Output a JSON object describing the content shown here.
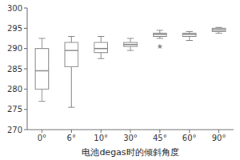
{
  "chart_data": {
    "type": "box",
    "xlabel": "电池degas时的倾斜角度",
    "categories": [
      "0°",
      "6°",
      "10°",
      "30°",
      "45°",
      "60°",
      "90°"
    ],
    "boxes": [
      {
        "whislo": 277.0,
        "q1": 280.0,
        "med": 284.5,
        "q3": 290.0,
        "whishi": 292.5,
        "fliers": []
      },
      {
        "whislo": 275.5,
        "q1": 285.5,
        "med": 289.5,
        "q3": 291.5,
        "whishi": 293.0,
        "fliers": []
      },
      {
        "whislo": 287.5,
        "q1": 289.0,
        "med": 290.0,
        "q3": 291.5,
        "whishi": 293.0,
        "fliers": []
      },
      {
        "whislo": 289.5,
        "q1": 290.5,
        "med": 291.0,
        "q3": 291.5,
        "whishi": 292.5,
        "fliers": []
      },
      {
        "whislo": 292.5,
        "q1": 293.0,
        "med": 293.5,
        "q3": 293.8,
        "whishi": 294.5,
        "fliers": [
          290.5
        ]
      },
      {
        "whislo": 292.0,
        "q1": 293.0,
        "med": 293.5,
        "q3": 293.8,
        "whishi": 294.2,
        "fliers": []
      },
      {
        "whislo": 293.8,
        "q1": 294.2,
        "med": 294.6,
        "q3": 295.0,
        "whishi": 295.2,
        "fliers": []
      }
    ],
    "ylim": [
      270,
      300
    ],
    "yticks": [
      270,
      275,
      280,
      285,
      290,
      295,
      300
    ],
    "grid": false,
    "color": "#888888",
    "marker": "star"
  }
}
